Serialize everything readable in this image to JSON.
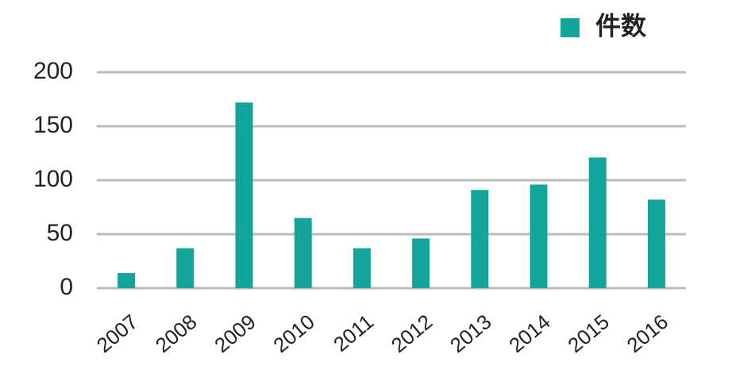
{
  "chart_data": {
    "type": "bar",
    "categories": [
      "2007",
      "2008",
      "2009",
      "2010",
      "2011",
      "2012",
      "2013",
      "2014",
      "2015",
      "2016"
    ],
    "series": [
      {
        "name": "件数",
        "color": "#13a59c",
        "values": [
          14,
          37,
          172,
          65,
          37,
          46,
          91,
          96,
          121,
          82
        ]
      }
    ],
    "ylim": [
      0,
      200
    ],
    "yticks": [
      0,
      50,
      100,
      150,
      200
    ],
    "grid": true,
    "legend": "top-right"
  }
}
